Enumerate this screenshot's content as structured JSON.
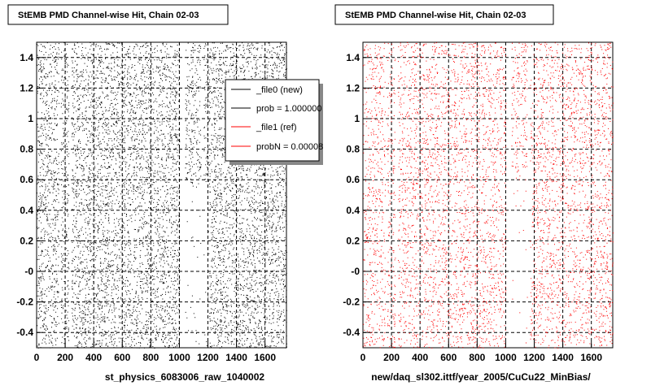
{
  "colors": {
    "file0": "#000000",
    "file1": "#ff0000",
    "background": "#ffffff",
    "grid": "#000000"
  },
  "chart_data": [
    {
      "type": "scatter",
      "title": "StEMB PMD Channel-wise Hit, Chain 02-03",
      "xlabel": "st_physics_6083006_raw_1040002",
      "ylabel": "",
      "xlim": [
        0,
        1750
      ],
      "ylim": [
        -0.5,
        1.5
      ],
      "x_ticks": [
        "0",
        "200",
        "400",
        "600",
        "800",
        "1000",
        "1200",
        "1400",
        "1600"
      ],
      "y_ticks": [
        "-0.4",
        "-0.2",
        "-0",
        "0.2",
        "0.4",
        "0.6",
        "0.8",
        "1",
        "1.2",
        "1.4"
      ],
      "grid": true,
      "series": [
        {
          "name": "_file0 (new)",
          "color": "#000000",
          "gaps": [
            [
              155,
              170
            ],
            [
              225,
              245
            ],
            [
              1000,
              1040
            ],
            [
              1150,
              1170
            ]
          ],
          "density": 9000,
          "sparse_region_x": [
            1040,
            1210
          ],
          "sparse_region_ymax": 0.55
        }
      ],
      "legend": {
        "position": "top-right",
        "entries": [
          "_file0 (new)",
          "prob = 1.000000",
          "_file1 (ref)",
          "probN = 0.00008"
        ],
        "entry_colors": [
          "#000000",
          "#000000",
          "#ff0000",
          "#ff0000"
        ]
      }
    },
    {
      "type": "scatter",
      "title": "StEMB PMD Channel-wise Hit, Chain 02-03",
      "xlabel": "new/daq_sl302.ittf/year_2005/CuCu22_MinBias/",
      "ylabel": "",
      "xlim": [
        0,
        1750
      ],
      "ylim": [
        -0.5,
        1.5
      ],
      "x_ticks": [
        "0",
        "200",
        "400",
        "600",
        "800",
        "1000",
        "1200",
        "1400",
        "1600"
      ],
      "y_ticks": [
        "-0.4",
        "-0.2",
        "-0",
        "0.2",
        "0.4",
        "0.6",
        "0.8",
        "1",
        "1.2",
        "1.4"
      ],
      "grid": true,
      "series": [
        {
          "name": "_file1 (ref)",
          "color": "#ff0000",
          "gaps": [
            [
              155,
              170
            ],
            [
              225,
              245
            ],
            [
              1000,
              1040
            ],
            [
              1150,
              1170
            ]
          ],
          "density": 6000,
          "sparse_region_x": [
            1000,
            1170
          ],
          "sparse_region_ymax": 0.6
        }
      ]
    }
  ]
}
